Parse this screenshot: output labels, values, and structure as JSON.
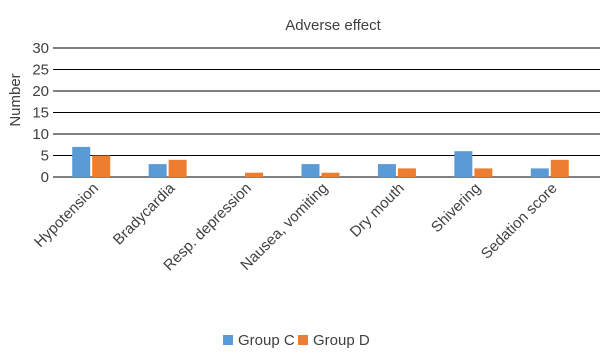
{
  "chart_data": {
    "type": "bar",
    "title": "Adverse effect",
    "ylabel": "Number",
    "xlabel": "",
    "ylim": [
      0,
      30
    ],
    "yticks": [
      0,
      5,
      10,
      15,
      20,
      25,
      30
    ],
    "grid": true,
    "legend_position": "bottom",
    "categories": [
      "Hypotension",
      "Bradycardia",
      "Resp. depression",
      "Nausea, vomiting",
      "Dry mouth",
      "Shivering",
      "Sedation score"
    ],
    "series": [
      {
        "name": "Group C",
        "color": "#5B9BD5",
        "values": [
          7,
          3,
          0,
          3,
          3,
          6,
          2
        ]
      },
      {
        "name": "Group D",
        "color": "#ED7D31",
        "values": [
          5,
          4,
          1,
          1,
          2,
          2,
          4
        ]
      }
    ]
  }
}
